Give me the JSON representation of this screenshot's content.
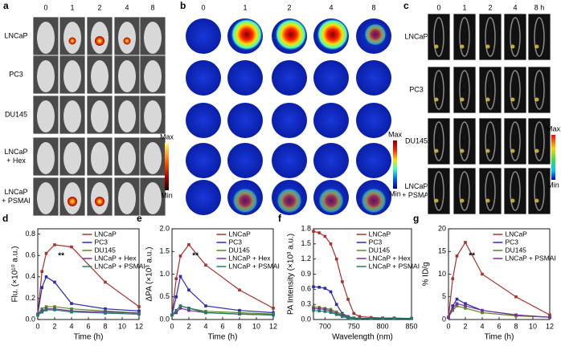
{
  "panels": {
    "a": {
      "label": "a",
      "columns": [
        "0",
        "1",
        "2",
        "4",
        "8"
      ],
      "rows": [
        [
          "LNCaP"
        ],
        [
          "PC3"
        ],
        [
          "DU145"
        ],
        [
          "LNCaP",
          "+ Hex"
        ],
        [
          "LNCaP",
          "+ PSMAI"
        ]
      ],
      "colorbar": {
        "max": "Max",
        "min": "Min"
      }
    },
    "b": {
      "label": "b",
      "columns": [
        "0",
        "1",
        "2",
        "4",
        "8"
      ],
      "colorbar": {
        "max": "Max",
        "min": "Min"
      }
    },
    "c": {
      "label": "c",
      "columns": [
        "0",
        "1",
        "2",
        "4",
        "8 h"
      ],
      "rows": [
        [
          "LNCaP"
        ],
        [
          "PC3"
        ],
        [
          "DU145"
        ],
        [
          "LNCaP",
          "+ PSMAI"
        ]
      ],
      "colorbar": {
        "max": "Max",
        "min": "Min"
      }
    }
  },
  "chart_data": [
    {
      "type": "line",
      "label": "d",
      "xlabel": "Time (h)",
      "ylabel": "Flu. (×10¹⁰ a.u.)",
      "annotation": "**",
      "legend": "top-right",
      "x": [
        0,
        0.5,
        1,
        2,
        4,
        8,
        12
      ],
      "xlim": [
        0,
        12
      ],
      "xticks": [
        0,
        2,
        4,
        6,
        8,
        10,
        12
      ],
      "ylim": [
        0,
        0.85
      ],
      "yticks": [
        {
          "value": 0,
          "label": "0.0"
        },
        0.2,
        0.4,
        0.6,
        0.8
      ],
      "series": [
        {
          "name": "LNCaP",
          "color": "#a8322d",
          "values": [
            0.05,
            0.45,
            0.62,
            0.7,
            0.68,
            0.35,
            0.12
          ]
        },
        {
          "name": "PC3",
          "color": "#2a2ab5",
          "values": [
            0.05,
            0.3,
            0.4,
            0.35,
            0.15,
            0.1,
            0.08
          ]
        },
        {
          "name": "DU145",
          "color": "#5c8a1e",
          "values": [
            0.05,
            0.1,
            0.12,
            0.12,
            0.1,
            0.08,
            0.06
          ]
        },
        {
          "name": "LNCaP + Hex",
          "color": "#7b2f9e",
          "values": [
            0.05,
            0.08,
            0.1,
            0.1,
            0.08,
            0.07,
            0.06
          ]
        },
        {
          "name": "LNCaP + PSMAI",
          "color": "#1f7a6a",
          "values": [
            0.04,
            0.07,
            0.09,
            0.09,
            0.07,
            0.06,
            0.05
          ]
        }
      ]
    },
    {
      "type": "line",
      "label": "e",
      "xlabel": "Time (h)",
      "ylabel": "ΔPA (×10³ a.u.)",
      "annotation": "**",
      "legend": "top-right",
      "x": [
        0,
        0.5,
        1,
        2,
        4,
        8,
        12
      ],
      "xlim": [
        0,
        12
      ],
      "xticks": [
        0,
        2,
        4,
        6,
        8,
        10,
        12
      ],
      "ylim": [
        0,
        2.0
      ],
      "yticks": [
        {
          "value": 0,
          "label": "0.0"
        },
        0.5,
        {
          "value": 1,
          "label": "1.0"
        },
        1.5,
        {
          "value": 2,
          "label": "2.0"
        }
      ],
      "series": [
        {
          "name": "LNCaP",
          "color": "#a8322d",
          "values": [
            0.1,
            0.9,
            1.4,
            1.65,
            1.2,
            0.65,
            0.25
          ]
        },
        {
          "name": "PC3",
          "color": "#2a2ab5",
          "values": [
            0.1,
            0.5,
            0.95,
            0.65,
            0.3,
            0.2,
            0.15
          ]
        },
        {
          "name": "DU145",
          "color": "#5c8a1e",
          "values": [
            0.1,
            0.2,
            0.3,
            0.25,
            0.18,
            0.15,
            0.12
          ]
        },
        {
          "name": "LNCaP + Hex",
          "color": "#7b2f9e",
          "values": [
            0.1,
            0.15,
            0.25,
            0.2,
            0.15,
            0.12,
            0.1
          ]
        },
        {
          "name": "LNCaP + PSMAI",
          "color": "#1f7a6a",
          "values": [
            0.1,
            0.2,
            0.3,
            0.25,
            0.15,
            0.12,
            0.1
          ]
        }
      ]
    },
    {
      "type": "line",
      "label": "f",
      "xlabel": "Wavelength (nm)",
      "ylabel": "PA Intensity (×10³ a.u.)",
      "legend": "top-right",
      "x": [
        680,
        690,
        700,
        710,
        720,
        730,
        740,
        750,
        760,
        780,
        800,
        820,
        850
      ],
      "xlim": [
        680,
        850
      ],
      "xticks": [
        700,
        750,
        800,
        850
      ],
      "ylim": [
        0,
        1.8
      ],
      "yticks": [
        {
          "value": 0,
          "label": "0.0"
        },
        0.3,
        0.6,
        0.9,
        1.2,
        1.5,
        1.8
      ],
      "series": [
        {
          "name": "LNCaP",
          "color": "#a8322d",
          "values": [
            1.75,
            1.72,
            1.65,
            1.5,
            1.2,
            0.75,
            0.4,
            0.12,
            0.06,
            0.04,
            0.03,
            0.03,
            0.02
          ]
        },
        {
          "name": "PC3",
          "color": "#2a2ab5",
          "values": [
            0.65,
            0.64,
            0.62,
            0.55,
            0.3,
            0.12,
            0.06,
            0.03,
            0.02,
            0.02,
            0.02,
            0.02,
            0.02
          ]
        },
        {
          "name": "DU145",
          "color": "#5c8a1e",
          "values": [
            0.25,
            0.24,
            0.22,
            0.2,
            0.15,
            0.1,
            0.05,
            0.03,
            0.02,
            0.02,
            0.02,
            0.02,
            0.02
          ]
        },
        {
          "name": "LNCaP + Hex",
          "color": "#7b2f9e",
          "values": [
            0.22,
            0.21,
            0.2,
            0.17,
            0.12,
            0.08,
            0.04,
            0.02,
            0.02,
            0.02,
            0.02,
            0.02,
            0.02
          ]
        },
        {
          "name": "LNCaP + PSMAI",
          "color": "#1f7a6a",
          "values": [
            0.18,
            0.17,
            0.16,
            0.14,
            0.1,
            0.06,
            0.03,
            0.02,
            0.02,
            0.02,
            0.02,
            0.02,
            0.02
          ]
        }
      ]
    },
    {
      "type": "line",
      "label": "g",
      "xlabel": "Time (h)",
      "ylabel": "% ID/g",
      "annotation": "**",
      "legend": "top-right",
      "x": [
        0,
        0.5,
        1,
        2,
        4,
        8,
        12
      ],
      "xlim": [
        0,
        12
      ],
      "xticks": [
        0,
        2,
        4,
        6,
        8,
        10,
        12
      ],
      "ylim": [
        0,
        20
      ],
      "yticks": [
        0,
        5,
        10,
        15,
        20
      ],
      "series": [
        {
          "name": "LNCaP",
          "color": "#a8322d",
          "values": [
            0.5,
            9,
            14,
            17,
            10,
            5,
            1
          ]
        },
        {
          "name": "PC3",
          "color": "#2a2ab5",
          "values": [
            0.5,
            3,
            4.5,
            3.5,
            2,
            1,
            0.5
          ]
        },
        {
          "name": "DU145",
          "color": "#5c8a1e",
          "values": [
            0.5,
            2,
            3,
            2.5,
            1.5,
            0.8,
            0.5
          ]
        },
        {
          "name": "LNCaP + PSMAI",
          "color": "#7b2f9e",
          "values": [
            0.5,
            2.5,
            3.5,
            3,
            2,
            1,
            0.5
          ]
        }
      ]
    }
  ]
}
